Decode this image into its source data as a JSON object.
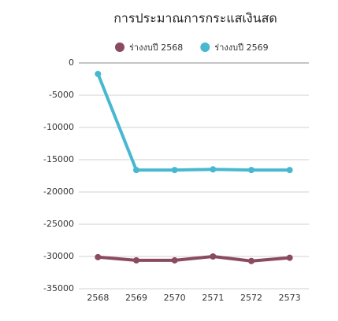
{
  "chart_data": {
    "type": "line",
    "title": "การประมาณการกระแสเงินสด",
    "categories": [
      "2568",
      "2569",
      "2570",
      "2571",
      "2572",
      "2573"
    ],
    "series": [
      {
        "name": "ร่างงบปี 2568",
        "color": "#8a4a62",
        "values": [
          -30100,
          -30600,
          -30600,
          -30000,
          -30700,
          -30200
        ]
      },
      {
        "name": "ร่างงบปี 2569",
        "color": "#48b8d0",
        "values": [
          -1700,
          -16600,
          -16600,
          -16500,
          -16600,
          -16600
        ]
      }
    ],
    "ylim": [
      -35000,
      0
    ],
    "yticks": [
      0,
      -5000,
      -10000,
      -15000,
      -20000,
      -25000,
      -30000,
      -35000
    ],
    "grid": true
  }
}
